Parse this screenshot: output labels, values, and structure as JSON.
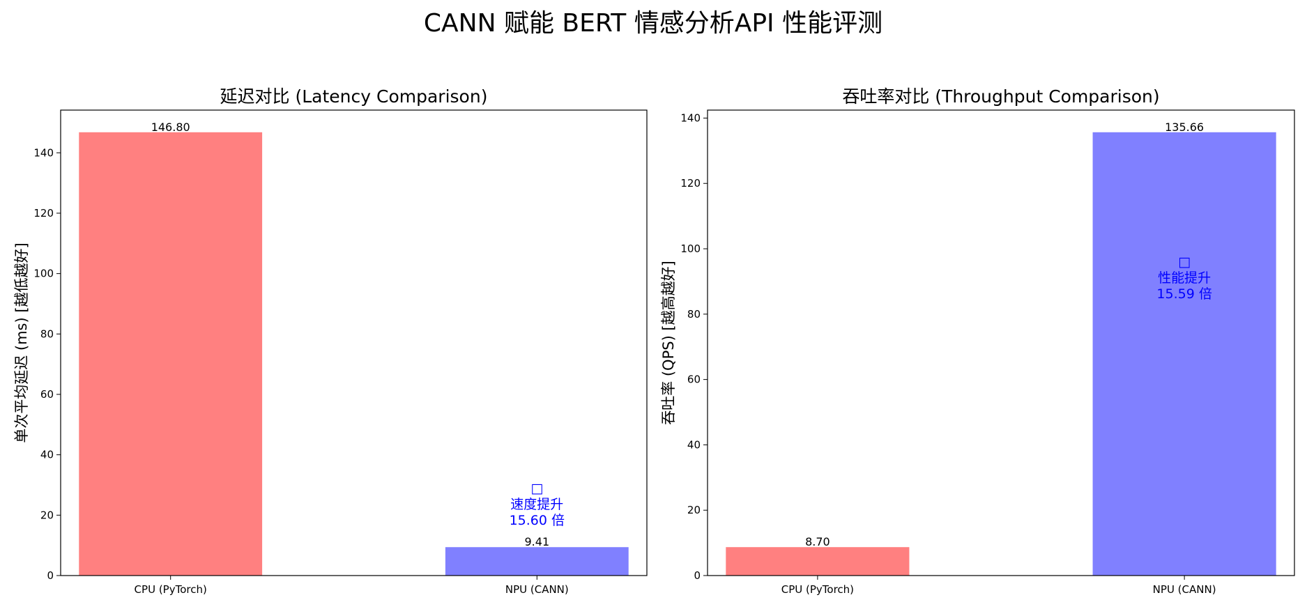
{
  "title": "CANN 赋能 BERT 情感分析API 性能评测",
  "chart_data": [
    {
      "type": "bar",
      "title": "延迟对比 (Latency Comparison)",
      "xlabel": "",
      "ylabel": "单次平均延迟 (ms) [越低越好]",
      "categories": [
        "CPU (PyTorch)",
        "NPU (CANN)"
      ],
      "values": [
        146.8,
        9.41
      ],
      "data_labels": [
        "146.80",
        "9.41"
      ],
      "colors": [
        "#ff8080",
        "#8080ff"
      ],
      "ylim": [
        0,
        154.14
      ],
      "yticks": [
        0,
        20,
        40,
        60,
        80,
        100,
        120,
        140
      ],
      "annotation": {
        "category": "NPU (CANN)",
        "lines": [
          "□",
          "速度提升",
          "15.60 倍"
        ],
        "color": "#0000ff"
      },
      "grid": false,
      "legend": "none"
    },
    {
      "type": "bar",
      "title": "吞吐率对比 (Throughput Comparison)",
      "xlabel": "",
      "ylabel": "吞吐率 (QPS) [越高越好]",
      "categories": [
        "CPU (PyTorch)",
        "NPU (CANN)"
      ],
      "values": [
        8.7,
        135.66
      ],
      "data_labels": [
        "8.70",
        "135.66"
      ],
      "colors": [
        "#ff8080",
        "#8080ff"
      ],
      "ylim": [
        0,
        142.44
      ],
      "yticks": [
        0,
        20,
        40,
        60,
        80,
        100,
        120,
        140
      ],
      "annotation": {
        "category": "NPU (CANN)",
        "lines": [
          "□",
          "性能提升",
          "15.59 倍"
        ],
        "color": "#0000ff"
      },
      "grid": false,
      "legend": "none"
    }
  ]
}
